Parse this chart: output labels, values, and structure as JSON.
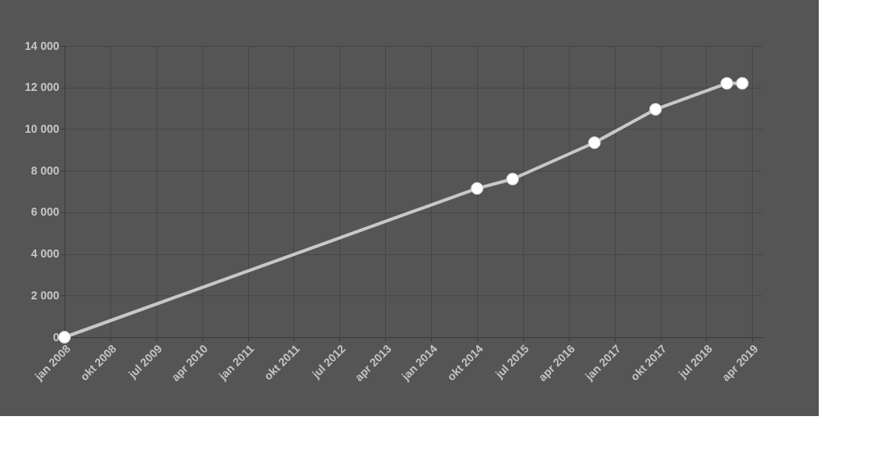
{
  "chart_data": {
    "type": "line",
    "x": [
      "2008-01",
      "2014-10",
      "2015-05",
      "2016-09",
      "2017-09",
      "2018-11",
      "2019-02"
    ],
    "series": [
      {
        "color": "#c8c8c8",
        "values": [
          0,
          7150,
          7600,
          9350,
          10950,
          12200,
          12200
        ]
      }
    ],
    "xlim": [
      "2008-01",
      "2019-06"
    ],
    "xticks": [
      {
        "value": "2008-01",
        "label": "jan 2008"
      },
      {
        "value": "2008-10",
        "label": "okt 2008"
      },
      {
        "value": "2009-07",
        "label": "jul 2009"
      },
      {
        "value": "2010-04",
        "label": "apr 2010"
      },
      {
        "value": "2011-01",
        "label": "jan 2011"
      },
      {
        "value": "2011-10",
        "label": "okt 2011"
      },
      {
        "value": "2012-07",
        "label": "jul 2012"
      },
      {
        "value": "2013-04",
        "label": "apr 2013"
      },
      {
        "value": "2014-01",
        "label": "jan 2014"
      },
      {
        "value": "2014-10",
        "label": "okt 2014"
      },
      {
        "value": "2015-07",
        "label": "jul 2015"
      },
      {
        "value": "2016-04",
        "label": "apr 2016"
      },
      {
        "value": "2017-01",
        "label": "jan 2017"
      },
      {
        "value": "2017-10",
        "label": "okt 2017"
      },
      {
        "value": "2018-07",
        "label": "jul 2018"
      },
      {
        "value": "2019-04",
        "label": "apr 2019"
      }
    ],
    "ylim": [
      0,
      14000
    ],
    "yticks": [
      0,
      {
        "value": 2000,
        "label": "2 000"
      },
      {
        "value": 4000,
        "label": "4 000"
      },
      {
        "value": 6000,
        "label": "6 000"
      },
      {
        "value": 8000,
        "label": "8 000"
      },
      {
        "value": 10000,
        "label": "10 000"
      },
      {
        "value": 12000,
        "label": "12 000"
      },
      {
        "value": 14000,
        "label": "14 000"
      }
    ],
    "grid": true,
    "marker": "circle",
    "line_style": "solid"
  }
}
